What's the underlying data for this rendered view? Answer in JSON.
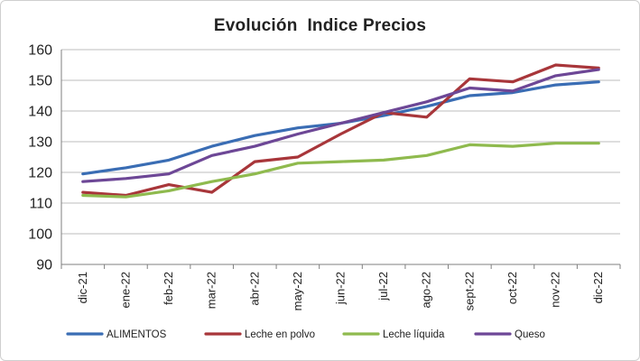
{
  "chart_data": {
    "type": "line",
    "title": "Evolución  Indice Precios",
    "xlabel": "",
    "ylabel": "",
    "categories": [
      "dic-21",
      "ene-22",
      "feb-22",
      "mar-22",
      "abr-22",
      "may-22",
      "jun-22",
      "jul-22",
      "ago-22",
      "sept-22",
      "oct-22",
      "nov-22",
      "dic-22"
    ],
    "ylim": [
      90,
      160
    ],
    "yticks": [
      90,
      100,
      110,
      120,
      130,
      140,
      150,
      160
    ],
    "grid": true,
    "legend_position": "bottom",
    "series": [
      {
        "name": "ALIMENTOS",
        "color": "#3a6db4",
        "values": [
          119.5,
          121.5,
          124,
          128.5,
          132,
          134.5,
          136,
          138.5,
          141.5,
          145,
          146,
          148.5,
          149.5
        ]
      },
      {
        "name": "Leche en polvo",
        "color": "#a8363a",
        "values": [
          113.5,
          112.5,
          116,
          113.5,
          123.5,
          125,
          132.5,
          139.5,
          138,
          150.5,
          149.5,
          155,
          154
        ]
      },
      {
        "name": "Leche líquida",
        "color": "#8fba4e",
        "values": [
          112.5,
          112,
          114,
          117,
          119.5,
          123,
          123.5,
          124,
          125.5,
          129,
          128.5,
          129.5,
          129.5
        ]
      },
      {
        "name": "Queso",
        "color": "#6d4796",
        "values": [
          117,
          118,
          119.5,
          125.5,
          128.5,
          132.5,
          136,
          139.5,
          143,
          147.5,
          146.5,
          151.5,
          153.5
        ]
      }
    ]
  }
}
